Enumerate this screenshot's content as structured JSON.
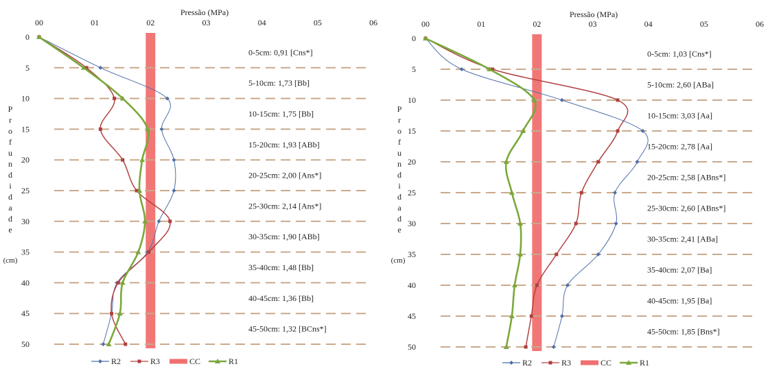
{
  "chart_data": [
    {
      "type": "line",
      "title": "Pressão (MPa)",
      "ylabel_letters": [
        "P",
        "r",
        "o",
        "f",
        "u",
        "n",
        "d",
        "i",
        "d",
        "a",
        "d",
        "e"
      ],
      "y_unit": "(cm)",
      "x_ticks": [
        "00",
        "01",
        "02",
        "03",
        "04",
        "05",
        "06"
      ],
      "y_ticks": [
        0,
        5,
        10,
        15,
        20,
        25,
        30,
        35,
        40,
        45,
        50
      ],
      "xlim": [
        0,
        6
      ],
      "ylim": [
        0,
        50
      ],
      "y_inverted": true,
      "reference_band": {
        "name": "CC",
        "x": 2.0,
        "color": "#f07070"
      },
      "series": [
        {
          "name": "R2",
          "color": "#4f6fa8",
          "marker": "diamond",
          "x": [
            0,
            1.1,
            2.3,
            2.2,
            2.42,
            2.42,
            2.15,
            1.95,
            1.4,
            1.3,
            1.15
          ],
          "y": [
            0,
            5,
            10,
            15,
            20,
            25,
            30,
            35,
            40,
            45,
            50
          ]
        },
        {
          "name": "R3",
          "color": "#b04040",
          "marker": "square",
          "x": [
            0,
            0.85,
            1.35,
            1.1,
            1.5,
            1.75,
            2.35,
            1.97,
            1.42,
            1.3,
            1.55
          ],
          "y": [
            0,
            5,
            10,
            15,
            20,
            25,
            30,
            35,
            40,
            45,
            50
          ]
        },
        {
          "name": "CC",
          "color": "#f07070",
          "marker": "band"
        },
        {
          "name": "R1",
          "color": "#7aa83a",
          "marker": "triangle",
          "x": [
            0,
            0.8,
            1.5,
            1.95,
            1.85,
            1.8,
            1.9,
            1.78,
            1.5,
            1.45,
            1.25
          ],
          "y": [
            0,
            5,
            10,
            15,
            20,
            25,
            30,
            35,
            40,
            45,
            50
          ]
        }
      ],
      "annotations": [
        {
          "y": 2.5,
          "text": "0-5cm: 0,91 [Cns*]"
        },
        {
          "y": 7.5,
          "text": "5-10cm: 1,73 [Bb]"
        },
        {
          "y": 12.5,
          "text": "10-15cm: 1,75 [Bb]"
        },
        {
          "y": 17.5,
          "text": "15-20cm: 1,93 [ABb]"
        },
        {
          "y": 22.5,
          "text": "20-25cm: 2,00 [Ans*]"
        },
        {
          "y": 27.5,
          "text": "25-30cm: 2,14 [Ans*]"
        },
        {
          "y": 32.5,
          "text": "30-35cm: 1,90 [ABb]"
        },
        {
          "y": 37.5,
          "text": "35-40cm: 1,48 [Bb]"
        },
        {
          "y": 42.5,
          "text": "40-45cm: 1,36 [Bb]"
        },
        {
          "y": 47.5,
          "text": "45-50cm: 1,32 [BCns*]"
        }
      ],
      "legend_placement": "bottom"
    },
    {
      "type": "line",
      "title": "Pressão (MPa)",
      "ylabel_letters": [
        "P",
        "r",
        "o",
        "f",
        "u",
        "n",
        "d",
        "i",
        "d",
        "a",
        "d",
        "e"
      ],
      "y_unit": "(cm)",
      "x_ticks": [
        "00",
        "01",
        "02",
        "03",
        "04",
        "05",
        "06"
      ],
      "y_ticks": [
        0,
        5,
        10,
        15,
        20,
        25,
        30,
        35,
        40,
        45,
        50
      ],
      "xlim": [
        0,
        6
      ],
      "ylim": [
        0,
        50
      ],
      "y_inverted": true,
      "reference_band": {
        "name": "CC",
        "x": 2.0,
        "color": "#f07070"
      },
      "series": [
        {
          "name": "R2",
          "color": "#4f6fa8",
          "marker": "diamond",
          "x": [
            0,
            0.65,
            2.45,
            3.9,
            3.8,
            3.4,
            3.42,
            3.1,
            2.55,
            2.45,
            2.3
          ],
          "y": [
            0,
            5,
            10,
            15,
            20,
            25,
            30,
            35,
            40,
            45,
            50
          ]
        },
        {
          "name": "R3",
          "color": "#b04040",
          "marker": "square",
          "x": [
            0,
            1.2,
            3.45,
            3.45,
            3.1,
            2.8,
            2.7,
            2.35,
            2.0,
            1.9,
            1.8
          ],
          "y": [
            0,
            5,
            10,
            15,
            20,
            25,
            30,
            35,
            40,
            45,
            50
          ]
        },
        {
          "name": "CC",
          "color": "#f07070",
          "marker": "band"
        },
        {
          "name": "R1",
          "color": "#7aa83a",
          "marker": "triangle",
          "x": [
            0,
            1.15,
            1.95,
            1.75,
            1.45,
            1.55,
            1.7,
            1.7,
            1.6,
            1.55,
            1.45
          ],
          "y": [
            0,
            5,
            10,
            15,
            20,
            25,
            30,
            35,
            40,
            45,
            50
          ]
        }
      ],
      "annotations": [
        {
          "y": 2.5,
          "text": "0-5cm: 1,03 [Cns*]"
        },
        {
          "y": 7.5,
          "text": "5-10cm: 2,60 [ABa]"
        },
        {
          "y": 12.5,
          "text": "10-15cm: 3,03 [Aa]"
        },
        {
          "y": 17.5,
          "text": "15-20cm: 2,78 [Aa]"
        },
        {
          "y": 22.5,
          "text": "20-25cm: 2,58 [ABns*]"
        },
        {
          "y": 27.5,
          "text": "25-30cm: 2,60 [ABns*]"
        },
        {
          "y": 32.5,
          "text": "30-35cm: 2,41 [ABa]"
        },
        {
          "y": 37.5,
          "text": "35-40cm: 2,07 [Ba]"
        },
        {
          "y": 42.5,
          "text": "40-45cm: 1,95 [Ba]"
        },
        {
          "y": 47.5,
          "text": "45-50cm: 1,85 [Bns*]"
        }
      ],
      "legend_placement": "bottom"
    }
  ]
}
